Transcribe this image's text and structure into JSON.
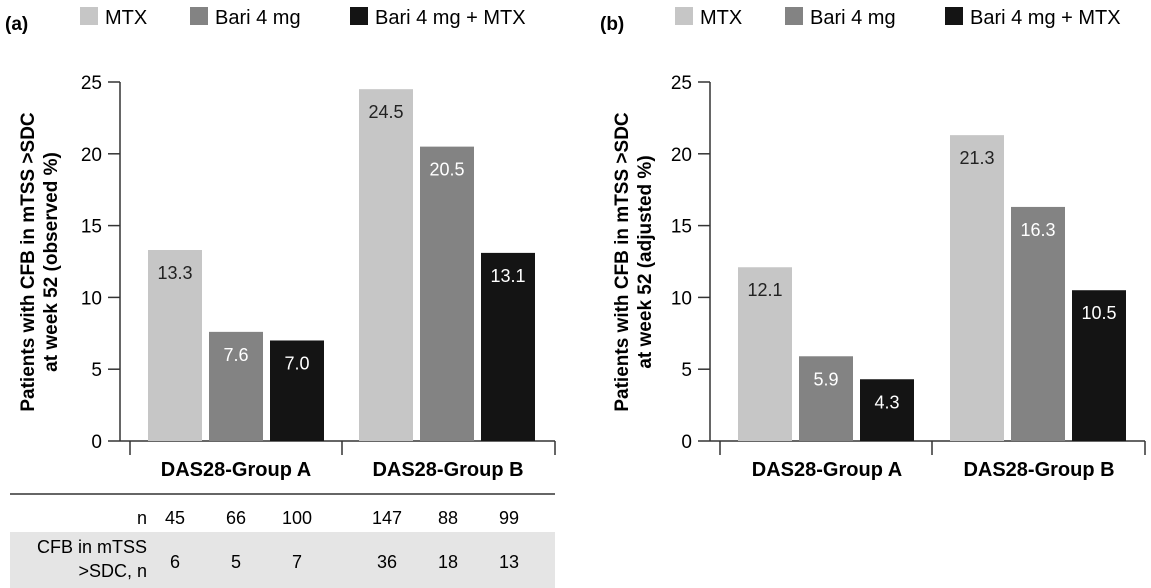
{
  "chart_data": [
    {
      "panel": "(a)",
      "type": "bar",
      "categories": [
        "DAS28-Group A",
        "DAS28-Group B"
      ],
      "series": [
        {
          "name": "MTX",
          "color": "#c6c6c6",
          "values": [
            13.3,
            24.5
          ],
          "value_labels": [
            "13.3",
            "24.5"
          ]
        },
        {
          "name": "Bari 4 mg",
          "color": "#838383",
          "values": [
            7.6,
            20.5
          ],
          "value_labels": [
            "7.6",
            "20.5"
          ]
        },
        {
          "name": "Bari 4 mg + MTX",
          "color": "#141414",
          "values": [
            7.0,
            13.1
          ],
          "value_labels": [
            "7.0",
            "13.1"
          ]
        }
      ],
      "ylabel_line1": "Patients with CFB in mTSS >SDC",
      "ylabel_line2": "at week 52 (observed %)",
      "ylim": [
        0,
        25
      ],
      "yticks": [
        "0",
        "5",
        "10",
        "15",
        "20",
        "25"
      ],
      "legend": "top",
      "grid": false,
      "table": {
        "row1_label": "n",
        "row1_values": [
          "45",
          "66",
          "100",
          "147",
          "88",
          "99"
        ],
        "row2_label_line1": "CFB in mTSS",
        "row2_label_line2": ">SDC, n",
        "row2_values": [
          "6",
          "5",
          "7",
          "36",
          "18",
          "13"
        ]
      }
    },
    {
      "panel": "(b)",
      "type": "bar",
      "categories": [
        "DAS28-Group A",
        "DAS28-Group B"
      ],
      "series": [
        {
          "name": "MTX",
          "color": "#c6c6c6",
          "values": [
            12.1,
            21.3
          ],
          "value_labels": [
            "12.1",
            "21.3"
          ]
        },
        {
          "name": "Bari 4 mg",
          "color": "#838383",
          "values": [
            5.9,
            16.3
          ],
          "value_labels": [
            "5.9",
            "16.3"
          ]
        },
        {
          "name": "Bari 4 mg + MTX",
          "color": "#141414",
          "values": [
            4.3,
            10.5
          ],
          "value_labels": [
            "4.3",
            "10.5"
          ]
        }
      ],
      "ylabel_line1": "Patients with CFB in mTSS >SDC",
      "ylabel_line2": "at week 52 (adjusted %)",
      "ylim": [
        0,
        25
      ],
      "yticks": [
        "0",
        "5",
        "10",
        "15",
        "20",
        "25"
      ],
      "legend": "top",
      "grid": false
    }
  ]
}
